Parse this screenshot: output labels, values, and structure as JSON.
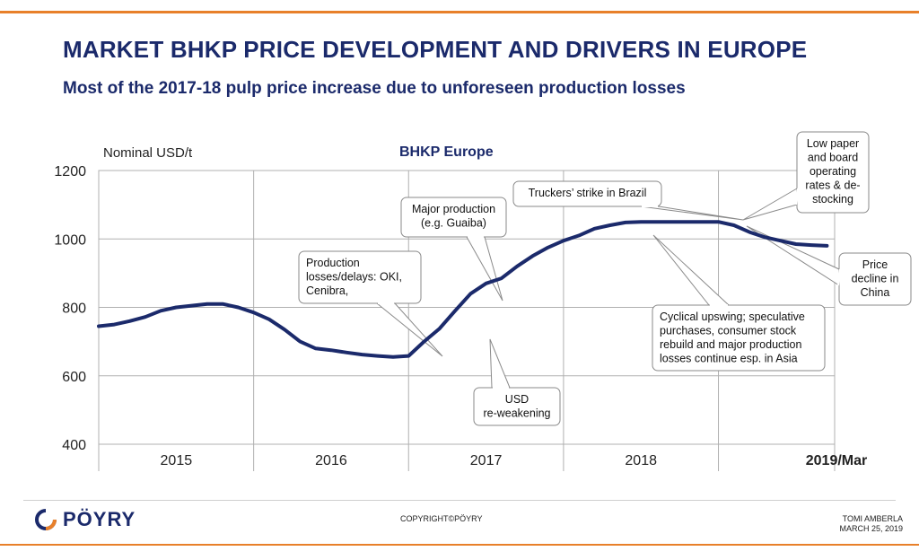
{
  "header": {
    "title": "MARKET BHKP PRICE DEVELOPMENT AND DRIVERS IN EUROPE",
    "subtitle": "Most of the 2017-18 pulp price increase due to unforeseen production losses"
  },
  "chart_data": {
    "type": "line",
    "title": "BHKP Europe",
    "ylabel": "Nominal USD/t",
    "ylim": [
      400,
      1200
    ],
    "yticks": [
      "400",
      "600",
      "800",
      "1000",
      "1200"
    ],
    "xlim": [
      2014.5,
      2019.25
    ],
    "xticks": [
      "2015",
      "2016",
      "2017",
      "2018",
      "2019/Mar"
    ],
    "grid": true,
    "series": [
      {
        "color": "#1b2a6b",
        "x": [
          2014.5,
          2014.6,
          2014.7,
          2014.8,
          2014.9,
          2015.0,
          2015.1,
          2015.2,
          2015.3,
          2015.4,
          2015.5,
          2015.6,
          2015.7,
          2015.8,
          2015.9,
          2016.0,
          2016.1,
          2016.2,
          2016.3,
          2016.4,
          2016.5,
          2016.6,
          2016.7,
          2016.8,
          2016.9,
          2017.0,
          2017.1,
          2017.2,
          2017.3,
          2017.4,
          2017.5,
          2017.6,
          2017.7,
          2017.8,
          2017.9,
          2018.0,
          2018.1,
          2018.2,
          2018.3,
          2018.4,
          2018.5,
          2018.6,
          2018.7,
          2018.8,
          2018.9,
          2019.0,
          2019.1,
          2019.2
        ],
        "y": [
          745,
          750,
          760,
          772,
          790,
          800,
          805,
          810,
          810,
          800,
          785,
          765,
          735,
          700,
          680,
          675,
          668,
          662,
          658,
          655,
          658,
          700,
          738,
          790,
          840,
          870,
          885,
          920,
          950,
          975,
          995,
          1010,
          1030,
          1040,
          1048,
          1050,
          1050,
          1050,
          1050,
          1050,
          1050,
          1040,
          1020,
          1005,
          995,
          985,
          982,
          980
        ]
      }
    ],
    "annotations": [
      {
        "lines": [
          "Production",
          "losses/delays: OKI,",
          "Cenibra,"
        ]
      },
      {
        "lines": [
          "Major production",
          "(e.g. Guaiba)"
        ]
      },
      {
        "lines": [
          "Truckers’ strike in Brazil"
        ]
      },
      {
        "lines": [
          "Low paper",
          "and board",
          "operating",
          "rates & de-",
          "stocking"
        ]
      },
      {
        "lines": [
          "Price",
          "decline in",
          "China"
        ]
      },
      {
        "lines": [
          "Cyclical upswing; speculative",
          "purchases, consumer stock",
          "rebuild and major production",
          "losses continue esp. in Asia"
        ]
      },
      {
        "lines": [
          "USD",
          "re-weakening"
        ]
      }
    ]
  },
  "footer": {
    "logo_text": "PÖYRY",
    "copyright": "COPYRIGHT©PÖYRY",
    "author": "TOMI AMBERLA",
    "date": "MARCH 25, 2019"
  }
}
